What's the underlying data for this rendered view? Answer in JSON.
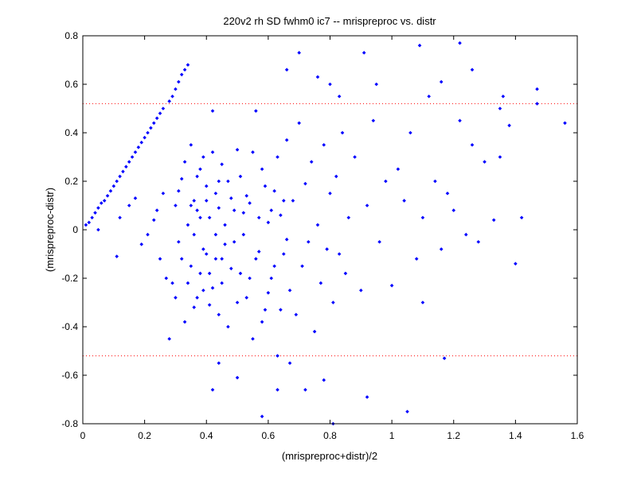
{
  "chart_data": {
    "type": "scatter",
    "title": "220v2 rh SD fwhm0 ic7 -- mrispreproc vs. distr",
    "xlabel": "(mrispreproc+distr)/2",
    "ylabel": "(mrispreproc-distr)",
    "xlim": [
      0,
      1.6
    ],
    "ylim": [
      -0.8,
      0.8
    ],
    "xticks": [
      0,
      0.2,
      0.4,
      0.6,
      0.8,
      1,
      1.2,
      1.4,
      1.6
    ],
    "xtick_labels": [
      "0",
      "0.2",
      "0.4",
      "0.6",
      "0.8",
      "1",
      "1.2",
      "1.4",
      "1.6"
    ],
    "yticks": [
      -0.8,
      -0.6,
      -0.4,
      -0.2,
      0,
      0.2,
      0.4,
      0.6,
      0.8
    ],
    "ytick_labels": [
      "-0.8",
      "-0.6",
      "-0.4",
      "-0.2",
      "0",
      "0.2",
      "0.4",
      "0.6",
      "0.8"
    ],
    "reference_lines": [
      0.52,
      -0.52
    ],
    "grid": false,
    "colors": {
      "points": "#0000ff",
      "reference_line": "#ff0000",
      "axes": "#000000"
    },
    "scatter_series": [
      {
        "points": [
          [
            0.01,
            0.02
          ],
          [
            0.02,
            0.03
          ],
          [
            0.03,
            0.05
          ],
          [
            0.04,
            0.07
          ],
          [
            0.05,
            0.09
          ],
          [
            0.06,
            0.11
          ],
          [
            0.07,
            0.12
          ],
          [
            0.08,
            0.14
          ],
          [
            0.09,
            0.16
          ],
          [
            0.1,
            0.18
          ],
          [
            0.11,
            0.2
          ],
          [
            0.12,
            0.22
          ],
          [
            0.13,
            0.24
          ],
          [
            0.14,
            0.26
          ],
          [
            0.15,
            0.28
          ],
          [
            0.16,
            0.3
          ],
          [
            0.17,
            0.32
          ],
          [
            0.18,
            0.34
          ],
          [
            0.19,
            0.36
          ],
          [
            0.2,
            0.38
          ],
          [
            0.21,
            0.4
          ],
          [
            0.22,
            0.42
          ],
          [
            0.23,
            0.44
          ],
          [
            0.24,
            0.46
          ],
          [
            0.25,
            0.48
          ],
          [
            0.26,
            0.5
          ],
          [
            0.28,
            0.53
          ],
          [
            0.29,
            0.55
          ],
          [
            0.3,
            0.58
          ],
          [
            0.31,
            0.61
          ],
          [
            0.32,
            0.64
          ],
          [
            0.33,
            0.66
          ],
          [
            0.34,
            0.68
          ],
          [
            0.05,
            0.0
          ],
          [
            0.11,
            -0.11
          ],
          [
            0.12,
            0.05
          ],
          [
            0.15,
            0.1
          ],
          [
            0.17,
            0.13
          ],
          [
            0.19,
            -0.06
          ],
          [
            0.21,
            -0.02
          ],
          [
            0.23,
            0.04
          ],
          [
            0.24,
            0.08
          ],
          [
            0.25,
            -0.12
          ],
          [
            0.26,
            0.15
          ],
          [
            0.27,
            -0.2
          ],
          [
            0.28,
            -0.45
          ],
          [
            0.29,
            -0.22
          ],
          [
            0.3,
            0.1
          ],
          [
            0.31,
            -0.05
          ],
          [
            0.32,
            0.21
          ],
          [
            0.33,
            -0.38
          ],
          [
            0.34,
            0.02
          ],
          [
            0.35,
            -0.15
          ],
          [
            0.36,
            0.12
          ],
          [
            0.37,
            -0.28
          ],
          [
            0.38,
            0.05
          ],
          [
            0.39,
            -0.08
          ],
          [
            0.4,
            0.18
          ],
          [
            0.41,
            -0.31
          ],
          [
            0.42,
            0.49
          ],
          [
            0.43,
            -0.12
          ],
          [
            0.44,
            0.09
          ],
          [
            0.45,
            -0.22
          ],
          [
            0.46,
            0.02
          ],
          [
            0.47,
            -0.4
          ],
          [
            0.48,
            0.13
          ],
          [
            0.49,
            -0.05
          ],
          [
            0.5,
            0.33
          ],
          [
            0.51,
            -0.18
          ],
          [
            0.52,
            0.07
          ],
          [
            0.53,
            -0.28
          ],
          [
            0.54,
            0.11
          ],
          [
            0.55,
            -0.45
          ],
          [
            0.56,
            0.49
          ],
          [
            0.57,
            -0.09
          ],
          [
            0.58,
            0.25
          ],
          [
            0.59,
            -0.33
          ],
          [
            0.6,
            0.03
          ],
          [
            0.61,
            -0.2
          ],
          [
            0.62,
            0.16
          ],
          [
            0.63,
            -0.52
          ],
          [
            0.64,
            0.06
          ],
          [
            0.65,
            -0.1
          ],
          [
            0.66,
            0.37
          ],
          [
            0.67,
            -0.25
          ],
          [
            0.68,
            0.12
          ],
          [
            0.69,
            -0.35
          ],
          [
            0.7,
            0.44
          ],
          [
            0.71,
            -0.15
          ],
          [
            0.72,
            0.19
          ],
          [
            0.73,
            -0.05
          ],
          [
            0.74,
            0.28
          ],
          [
            0.75,
            -0.42
          ],
          [
            0.76,
            0.02
          ],
          [
            0.77,
            -0.22
          ],
          [
            0.78,
            0.35
          ],
          [
            0.79,
            -0.08
          ],
          [
            0.8,
            0.15
          ],
          [
            0.81,
            -0.3
          ],
          [
            0.82,
            0.22
          ],
          [
            0.83,
            -0.1
          ],
          [
            0.84,
            0.4
          ],
          [
            0.85,
            -0.18
          ],
          [
            0.86,
            0.05
          ],
          [
            0.88,
            0.3
          ],
          [
            0.9,
            -0.25
          ],
          [
            0.92,
            0.1
          ],
          [
            0.94,
            0.45
          ],
          [
            0.96,
            -0.05
          ],
          [
            0.98,
            0.2
          ],
          [
            1.0,
            -0.23
          ],
          [
            1.02,
            0.25
          ],
          [
            1.04,
            0.12
          ],
          [
            1.06,
            0.4
          ],
          [
            1.08,
            -0.12
          ],
          [
            1.1,
            0.05
          ],
          [
            1.12,
            0.55
          ],
          [
            1.14,
            0.2
          ],
          [
            1.16,
            -0.08
          ],
          [
            1.18,
            0.15
          ],
          [
            1.2,
            0.08
          ],
          [
            1.22,
            0.45
          ],
          [
            1.24,
            -0.02
          ],
          [
            1.26,
            0.35
          ],
          [
            1.28,
            -0.05
          ],
          [
            1.3,
            0.28
          ],
          [
            1.33,
            0.04
          ],
          [
            1.35,
            0.3
          ],
          [
            1.38,
            0.43
          ],
          [
            1.4,
            -0.14
          ],
          [
            1.42,
            0.05
          ],
          [
            1.47,
            0.58
          ],
          [
            1.47,
            0.52
          ],
          [
            1.56,
            0.44
          ],
          [
            0.66,
            0.66
          ],
          [
            0.7,
            0.73
          ],
          [
            0.76,
            0.63
          ],
          [
            0.8,
            0.6
          ],
          [
            0.83,
            0.55
          ],
          [
            0.91,
            0.73
          ],
          [
            0.95,
            0.6
          ],
          [
            1.09,
            0.76
          ],
          [
            1.16,
            0.61
          ],
          [
            1.22,
            0.77
          ],
          [
            1.26,
            0.66
          ],
          [
            1.35,
            0.5
          ],
          [
            1.36,
            0.55
          ],
          [
            0.92,
            -0.69
          ],
          [
            1.05,
            -0.75
          ],
          [
            0.81,
            -0.8
          ],
          [
            0.58,
            -0.77
          ],
          [
            0.42,
            -0.66
          ],
          [
            0.5,
            -0.61
          ],
          [
            0.63,
            -0.66
          ],
          [
            0.72,
            -0.66
          ],
          [
            0.78,
            -0.62
          ],
          [
            1.17,
            -0.53
          ],
          [
            1.1,
            -0.3
          ],
          [
            0.67,
            -0.55
          ],
          [
            0.44,
            -0.55
          ],
          [
            0.35,
            0.1
          ],
          [
            0.36,
            -0.02
          ],
          [
            0.37,
            0.22
          ],
          [
            0.38,
            -0.18
          ],
          [
            0.39,
            0.3
          ],
          [
            0.4,
            -0.1
          ],
          [
            0.41,
            0.05
          ],
          [
            0.42,
            -0.24
          ],
          [
            0.43,
            0.15
          ],
          [
            0.44,
            -0.35
          ],
          [
            0.45,
            0.27
          ],
          [
            0.46,
            -0.06
          ],
          [
            0.47,
            0.2
          ],
          [
            0.48,
            -0.16
          ],
          [
            0.49,
            0.08
          ],
          [
            0.5,
            -0.3
          ],
          [
            0.51,
            0.22
          ],
          [
            0.52,
            -0.02
          ],
          [
            0.53,
            0.14
          ],
          [
            0.54,
            -0.2
          ],
          [
            0.55,
            0.32
          ],
          [
            0.56,
            -0.12
          ],
          [
            0.57,
            0.05
          ],
          [
            0.58,
            -0.38
          ],
          [
            0.59,
            0.18
          ],
          [
            0.6,
            -0.26
          ],
          [
            0.61,
            0.08
          ],
          [
            0.62,
            -0.15
          ],
          [
            0.63,
            0.3
          ],
          [
            0.64,
            -0.33
          ],
          [
            0.65,
            0.12
          ],
          [
            0.66,
            -0.04
          ],
          [
            0.3,
            -0.28
          ],
          [
            0.31,
            0.16
          ],
          [
            0.32,
            -0.12
          ],
          [
            0.33,
            0.28
          ],
          [
            0.34,
            -0.22
          ],
          [
            0.35,
            0.35
          ],
          [
            0.36,
            -0.32
          ],
          [
            0.37,
            0.08
          ],
          [
            0.38,
            0.25
          ],
          [
            0.39,
            -0.25
          ],
          [
            0.4,
            0.12
          ],
          [
            0.41,
            -0.18
          ],
          [
            0.42,
            0.32
          ],
          [
            0.43,
            -0.02
          ],
          [
            0.44,
            0.2
          ],
          [
            0.45,
            -0.12
          ]
        ]
      }
    ]
  }
}
